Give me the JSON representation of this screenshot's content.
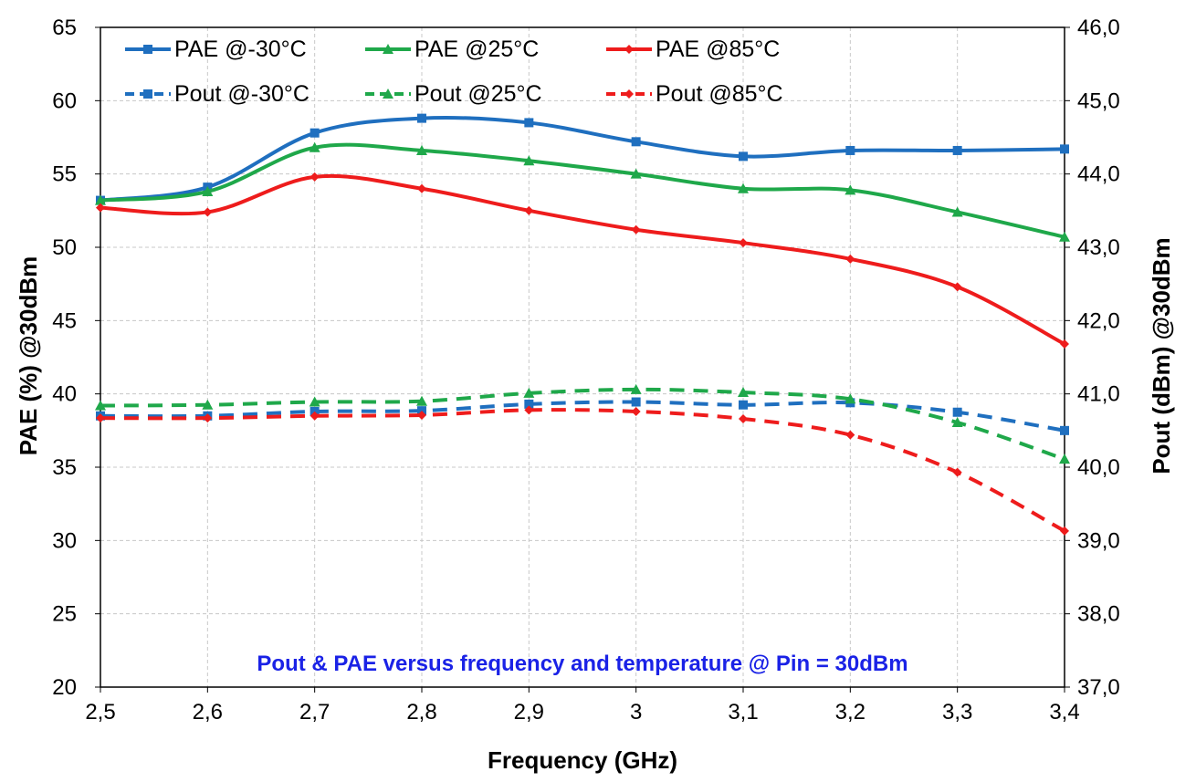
{
  "chart_data": {
    "type": "line",
    "title": "",
    "annotation": "Pout & PAE versus frequency and temperature @ Pin = 30dBm",
    "xlabel": "Frequency (GHz)",
    "ylabel": "PAE (%) @30dBm",
    "y2label": "Pout (dBm) @30dBm",
    "xlim": [
      2.5,
      3.4
    ],
    "ylim": [
      20,
      65
    ],
    "y2lim": [
      37.0,
      46.0
    ],
    "grid": true,
    "legend_position": "top",
    "x": [
      2.5,
      2.6,
      2.7,
      2.8,
      2.9,
      3.0,
      3.1,
      3.2,
      3.3,
      3.4
    ],
    "x_tick_labels": [
      "2,5",
      "2,6",
      "2,7",
      "2,8",
      "2,9",
      "3",
      "3,1",
      "3,2",
      "3,3",
      "3,4"
    ],
    "y_tick_labels": [
      "20",
      "25",
      "30",
      "35",
      "40",
      "45",
      "50",
      "55",
      "60",
      "65"
    ],
    "y2_tick_labels": [
      "37,0",
      "38,0",
      "39,0",
      "40,0",
      "41,0",
      "42,0",
      "43,0",
      "44,0",
      "45,0",
      "46,0"
    ],
    "series": [
      {
        "name": "PAE @-30°C",
        "axis": "left",
        "style": "solid",
        "marker": "square",
        "color": "#1F6FBF",
        "values": [
          53.2,
          54.1,
          57.8,
          58.8,
          58.5,
          57.2,
          56.2,
          56.6,
          56.6,
          56.7
        ]
      },
      {
        "name": "PAE @25°C",
        "axis": "left",
        "style": "solid",
        "marker": "triangle",
        "color": "#1FA84A",
        "values": [
          53.2,
          53.8,
          56.8,
          56.6,
          55.9,
          55.0,
          54.0,
          53.9,
          52.4,
          50.7
        ]
      },
      {
        "name": "PAE @85°C",
        "axis": "left",
        "style": "solid",
        "marker": "diamond",
        "color": "#EE1C1C",
        "values": [
          52.7,
          52.4,
          54.8,
          54.0,
          52.5,
          51.2,
          50.3,
          49.2,
          47.3,
          43.4
        ]
      },
      {
        "name": "Pout @-30°C",
        "axis": "right",
        "style": "dashed",
        "marker": "square",
        "color": "#1F6FBF",
        "values": [
          40.7,
          40.7,
          40.76,
          40.77,
          40.86,
          40.89,
          40.85,
          40.88,
          40.75,
          40.5
        ]
      },
      {
        "name": "Pout @25°C",
        "axis": "right",
        "style": "dashed",
        "marker": "triangle",
        "color": "#1FA84A",
        "values": [
          40.84,
          40.85,
          40.89,
          40.9,
          41.01,
          41.06,
          41.02,
          40.93,
          40.61,
          40.11
        ]
      },
      {
        "name": "Pout @85°C",
        "axis": "right",
        "style": "dashed",
        "marker": "diamond",
        "color": "#EE1C1C",
        "values": [
          40.67,
          40.67,
          40.7,
          40.71,
          40.78,
          40.76,
          40.66,
          40.44,
          39.93,
          39.13
        ]
      }
    ]
  }
}
